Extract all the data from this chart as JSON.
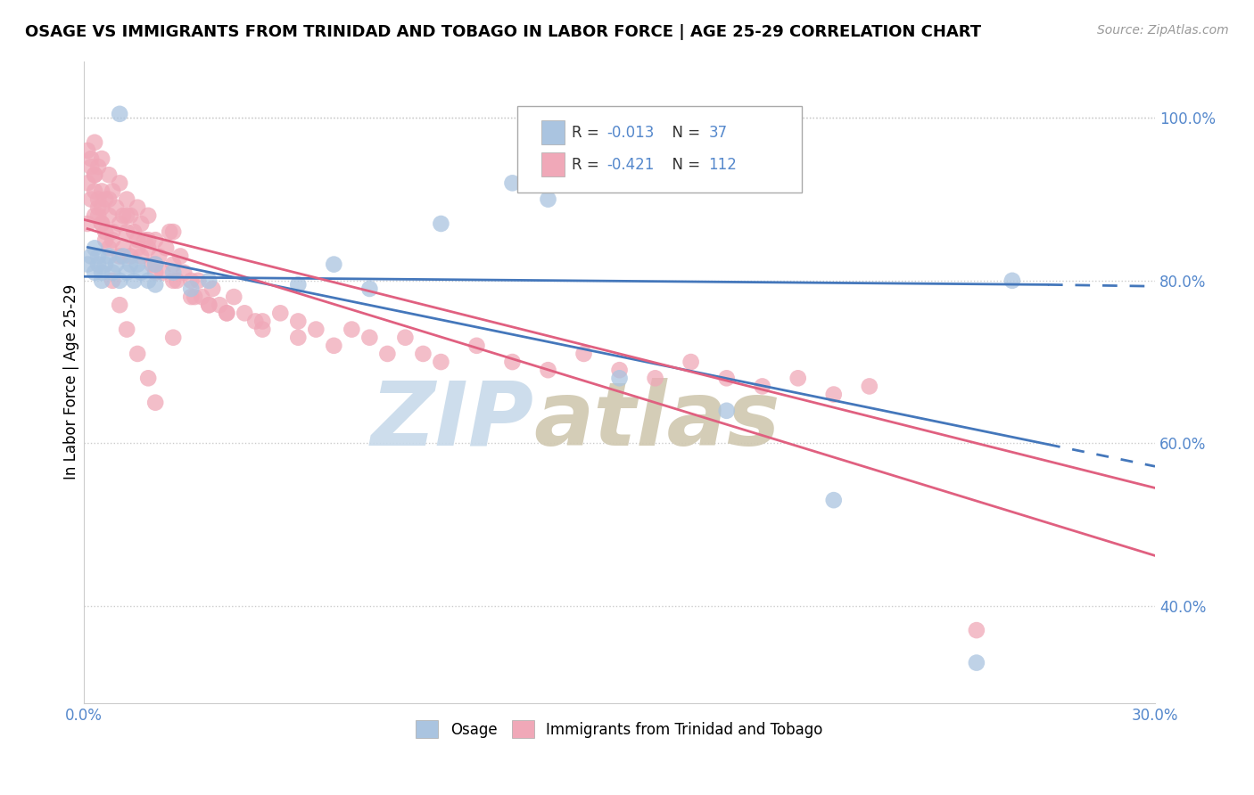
{
  "title": "OSAGE VS IMMIGRANTS FROM TRINIDAD AND TOBAGO IN LABOR FORCE | AGE 25-29 CORRELATION CHART",
  "source": "Source: ZipAtlas.com",
  "ylabel": "In Labor Force | Age 25-29",
  "legend_label1": "Osage",
  "legend_label2": "Immigrants from Trinidad and Tobago",
  "r1": -0.013,
  "n1": 37,
  "r2": -0.421,
  "n2": 112,
  "color1": "#aac4e0",
  "color2": "#f0a8b8",
  "trendline1_color": "#4477bb",
  "trendline2_color": "#e06080",
  "xlim": [
    0.0,
    0.3
  ],
  "ylim": [
    0.28,
    1.07
  ],
  "xticks": [
    0.0,
    0.05,
    0.1,
    0.15,
    0.2,
    0.25,
    0.3
  ],
  "xticklabels": [
    "0.0%",
    "",
    "",
    "",
    "",
    "",
    "30.0%"
  ],
  "ytick_positions": [
    0.4,
    0.6,
    0.8,
    1.0
  ],
  "ytick_labels": [
    "40.0%",
    "60.0%",
    "80.0%",
    "100.0%"
  ],
  "watermark_zip": "ZIP",
  "watermark_atlas": "atlas",
  "bg_color": "#ffffff",
  "grid_color": "#cccccc",
  "osage_x": [
    0.001,
    0.002,
    0.003,
    0.003,
    0.004,
    0.004,
    0.005,
    0.005,
    0.006,
    0.007,
    0.008,
    0.009,
    0.01,
    0.011,
    0.012,
    0.013,
    0.014,
    0.015,
    0.016,
    0.018,
    0.02,
    0.025,
    0.03,
    0.035,
    0.06,
    0.07,
    0.08,
    0.1,
    0.12,
    0.13,
    0.15,
    0.18,
    0.21,
    0.25,
    0.02,
    0.26,
    0.01
  ],
  "osage_y": [
    0.82,
    0.83,
    0.81,
    0.84,
    0.82,
    0.83,
    0.81,
    0.8,
    0.82,
    0.83,
    0.81,
    0.82,
    0.8,
    0.83,
    0.81,
    0.82,
    0.8,
    0.82,
    0.81,
    0.8,
    0.82,
    0.81,
    0.79,
    0.8,
    0.795,
    0.82,
    0.79,
    0.87,
    0.92,
    0.9,
    0.68,
    0.64,
    0.53,
    0.33,
    0.795,
    0.8,
    1.005
  ],
  "tt_x": [
    0.001,
    0.001,
    0.002,
    0.002,
    0.003,
    0.003,
    0.003,
    0.004,
    0.004,
    0.005,
    0.005,
    0.005,
    0.006,
    0.006,
    0.007,
    0.007,
    0.008,
    0.008,
    0.009,
    0.01,
    0.01,
    0.011,
    0.011,
    0.012,
    0.012,
    0.013,
    0.013,
    0.014,
    0.015,
    0.015,
    0.016,
    0.016,
    0.017,
    0.018,
    0.018,
    0.019,
    0.02,
    0.02,
    0.021,
    0.022,
    0.023,
    0.024,
    0.025,
    0.026,
    0.027,
    0.028,
    0.03,
    0.031,
    0.032,
    0.033,
    0.035,
    0.036,
    0.038,
    0.04,
    0.042,
    0.045,
    0.048,
    0.05,
    0.055,
    0.06,
    0.065,
    0.07,
    0.075,
    0.08,
    0.085,
    0.09,
    0.095,
    0.1,
    0.11,
    0.12,
    0.13,
    0.14,
    0.15,
    0.16,
    0.17,
    0.18,
    0.19,
    0.2,
    0.21,
    0.22,
    0.001,
    0.002,
    0.003,
    0.004,
    0.005,
    0.006,
    0.007,
    0.008,
    0.01,
    0.012,
    0.015,
    0.018,
    0.02,
    0.025,
    0.003,
    0.004,
    0.005,
    0.007,
    0.008,
    0.01,
    0.012,
    0.015,
    0.018,
    0.02,
    0.025,
    0.03,
    0.035,
    0.04,
    0.025,
    0.25,
    0.05,
    0.06
  ],
  "tt_y": [
    0.87,
    0.92,
    0.9,
    0.95,
    0.88,
    0.93,
    0.97,
    0.89,
    0.94,
    0.91,
    0.87,
    0.95,
    0.9,
    0.86,
    0.88,
    0.93,
    0.85,
    0.91,
    0.89,
    0.87,
    0.92,
    0.88,
    0.84,
    0.9,
    0.86,
    0.88,
    0.83,
    0.86,
    0.89,
    0.85,
    0.87,
    0.83,
    0.85,
    0.88,
    0.84,
    0.82,
    0.85,
    0.81,
    0.83,
    0.81,
    0.84,
    0.86,
    0.82,
    0.8,
    0.83,
    0.81,
    0.8,
    0.78,
    0.8,
    0.78,
    0.77,
    0.79,
    0.77,
    0.76,
    0.78,
    0.76,
    0.75,
    0.74,
    0.76,
    0.75,
    0.74,
    0.72,
    0.74,
    0.73,
    0.71,
    0.73,
    0.71,
    0.7,
    0.72,
    0.7,
    0.69,
    0.71,
    0.69,
    0.68,
    0.7,
    0.68,
    0.67,
    0.68,
    0.66,
    0.67,
    0.96,
    0.94,
    0.91,
    0.88,
    0.89,
    0.85,
    0.9,
    0.86,
    0.83,
    0.88,
    0.84,
    0.85,
    0.82,
    0.86,
    0.93,
    0.9,
    0.87,
    0.84,
    0.8,
    0.77,
    0.74,
    0.71,
    0.68,
    0.65,
    0.8,
    0.78,
    0.77,
    0.76,
    0.73,
    0.37,
    0.75,
    0.73
  ]
}
